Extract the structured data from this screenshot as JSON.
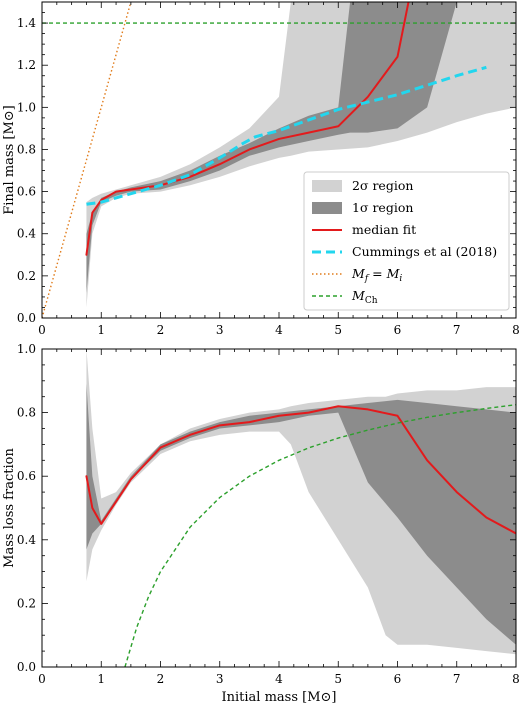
{
  "chart_data": [
    {
      "type": "line",
      "xlabel": "",
      "ylabel": "Final mass [M⊙]",
      "xlim": [
        0,
        8
      ],
      "ylim": [
        0,
        1.5
      ],
      "xticks": [
        "0",
        "1",
        "2",
        "3",
        "4",
        "5",
        "6",
        "7",
        "8"
      ],
      "yticks": [
        "0.0",
        "0.2",
        "0.4",
        "0.6",
        "0.8",
        "1.0",
        "1.2",
        "1.4"
      ],
      "ytick_values": [
        0,
        0.2,
        0.4,
        0.6,
        0.8,
        1.0,
        1.2,
        1.4
      ],
      "legend_position": "lower-right",
      "bands": [
        {
          "name": "2σ region",
          "color": "#d2d2d2",
          "x": [
            0.75,
            0.85,
            1.0,
            1.25,
            1.5,
            2.0,
            2.5,
            3.0,
            3.5,
            4.0,
            4.2,
            4.5,
            5.0,
            5.5,
            6.0,
            6.5,
            7.0,
            7.5,
            8.0
          ],
          "upper": [
            0.55,
            0.57,
            0.59,
            0.61,
            0.63,
            0.67,
            0.73,
            0.81,
            0.9,
            1.05,
            1.5,
            1.5,
            1.5,
            1.5,
            1.5,
            1.5,
            1.5,
            1.5,
            1.5
          ],
          "lower": [
            0.05,
            0.4,
            0.53,
            0.57,
            0.59,
            0.6,
            0.63,
            0.67,
            0.72,
            0.76,
            0.77,
            0.79,
            0.8,
            0.81,
            0.84,
            0.88,
            0.93,
            0.97,
            1.0
          ]
        },
        {
          "name": "1σ region",
          "color": "#8c8c8c",
          "x": [
            0.75,
            0.85,
            1.0,
            1.25,
            1.5,
            2.0,
            2.5,
            3.0,
            3.5,
            4.0,
            4.5,
            5.0,
            5.2,
            5.5,
            6.0,
            6.5,
            7.0,
            7.5,
            8.0
          ],
          "upper": [
            0.4,
            0.5,
            0.57,
            0.6,
            0.62,
            0.65,
            0.7,
            0.77,
            0.83,
            0.9,
            0.96,
            1.0,
            1.5,
            1.5,
            1.5,
            1.5,
            1.5,
            1.5,
            1.5
          ],
          "lower": [
            0.12,
            0.44,
            0.55,
            0.58,
            0.6,
            0.61,
            0.65,
            0.7,
            0.77,
            0.81,
            0.84,
            0.87,
            0.88,
            0.88,
            0.9,
            1.0,
            1.5,
            1.5,
            1.5
          ]
        }
      ],
      "series": [
        {
          "name": "median fit",
          "color": "#e31a1c",
          "width": 2,
          "dash": "",
          "x": [
            0.75,
            0.85,
            1.0,
            1.25,
            1.5,
            2.0,
            2.5,
            3.0,
            3.5,
            4.0,
            4.5,
            5.0,
            5.5,
            6.0,
            6.2
          ],
          "y": [
            0.3,
            0.5,
            0.56,
            0.6,
            0.61,
            0.63,
            0.67,
            0.73,
            0.8,
            0.85,
            0.88,
            0.91,
            1.05,
            1.24,
            1.52
          ]
        },
        {
          "name": "Cummings et al (2018)",
          "color": "#22d6ee",
          "width": 3,
          "dash": "9 5",
          "x": [
            0.75,
            1.0,
            1.5,
            2.0,
            2.5,
            3.0,
            3.4,
            3.6,
            4.0,
            5.0,
            6.0,
            7.0,
            7.5
          ],
          "y": [
            0.54,
            0.55,
            0.59,
            0.63,
            0.68,
            0.76,
            0.83,
            0.86,
            0.89,
            0.99,
            1.06,
            1.15,
            1.19
          ]
        },
        {
          "name": "M_f = M_i",
          "color": "#e07b1a",
          "width": 1.4,
          "dash": "1.5 2.5",
          "x": [
            0,
            1.5
          ],
          "y": [
            0,
            1.5
          ]
        },
        {
          "name": "M_Ch",
          "color": "#2ca02c",
          "width": 1.4,
          "dash": "4 3",
          "x": [
            0,
            8
          ],
          "y": [
            1.4,
            1.4
          ]
        }
      ]
    },
    {
      "type": "line",
      "xlabel": "Initial mass [M⊙]",
      "ylabel": "Mass loss fraction",
      "xlim": [
        0,
        8
      ],
      "ylim": [
        0,
        1.0
      ],
      "xticks": [
        "0",
        "1",
        "2",
        "3",
        "4",
        "5",
        "6",
        "7",
        "8"
      ],
      "yticks": [
        "0.0",
        "0.2",
        "0.4",
        "0.6",
        "0.8",
        "1.0"
      ],
      "ytick_values": [
        0,
        0.2,
        0.4,
        0.6,
        0.8,
        1.0
      ],
      "bands": [
        {
          "name": "2σ region",
          "color": "#d2d2d2",
          "x": [
            0.75,
            0.85,
            1.0,
            1.25,
            1.5,
            2.0,
            2.5,
            3.0,
            3.5,
            4.0,
            4.2,
            4.5,
            5.0,
            5.5,
            5.8,
            6.0,
            6.5,
            7.0,
            7.5,
            8.0
          ],
          "upper": [
            1.0,
            0.75,
            0.53,
            0.55,
            0.61,
            0.7,
            0.75,
            0.78,
            0.8,
            0.81,
            0.82,
            0.83,
            0.84,
            0.85,
            0.85,
            0.86,
            0.87,
            0.87,
            0.88,
            0.88
          ],
          "lower": [
            0.27,
            0.37,
            0.43,
            0.51,
            0.58,
            0.67,
            0.71,
            0.73,
            0.74,
            0.74,
            0.7,
            0.55,
            0.4,
            0.25,
            0.1,
            0.07,
            0.07,
            0.06,
            0.05,
            0.04
          ]
        },
        {
          "name": "1σ region",
          "color": "#8c8c8c",
          "x": [
            0.75,
            0.85,
            1.0,
            1.25,
            1.5,
            2.0,
            2.5,
            3.0,
            3.5,
            4.0,
            4.5,
            5.0,
            5.5,
            6.0,
            6.5,
            7.0,
            7.5,
            8.0
          ],
          "upper": [
            0.89,
            0.6,
            0.46,
            0.53,
            0.6,
            0.7,
            0.74,
            0.77,
            0.79,
            0.8,
            0.81,
            0.82,
            0.83,
            0.84,
            0.83,
            0.82,
            0.81,
            0.8
          ],
          "lower": [
            0.37,
            0.42,
            0.45,
            0.52,
            0.59,
            0.68,
            0.72,
            0.75,
            0.76,
            0.77,
            0.79,
            0.8,
            0.58,
            0.47,
            0.35,
            0.25,
            0.15,
            0.07
          ]
        }
      ],
      "series": [
        {
          "name": "median fit",
          "color": "#e31a1c",
          "width": 2,
          "dash": "",
          "x": [
            0.75,
            0.85,
            1.0,
            1.25,
            1.5,
            2.0,
            2.5,
            3.0,
            3.5,
            4.0,
            4.5,
            5.0,
            5.5,
            6.0,
            6.5,
            7.0,
            7.5,
            8.0
          ],
          "y": [
            0.6,
            0.5,
            0.45,
            0.52,
            0.59,
            0.69,
            0.73,
            0.76,
            0.77,
            0.79,
            0.8,
            0.82,
            0.81,
            0.79,
            0.65,
            0.55,
            0.47,
            0.42
          ]
        },
        {
          "name": "M_Ch",
          "color": "#2ca02c",
          "width": 1.4,
          "dash": "4 3",
          "x": [
            1.4,
            1.6,
            1.8,
            2.0,
            2.5,
            3.0,
            3.5,
            4.0,
            4.5,
            5.0,
            5.5,
            6.0,
            6.5,
            7.0,
            7.5,
            8.0
          ],
          "y": [
            0.0,
            0.125,
            0.222,
            0.3,
            0.44,
            0.533,
            0.6,
            0.65,
            0.689,
            0.72,
            0.745,
            0.767,
            0.785,
            0.8,
            0.813,
            0.825
          ]
        }
      ]
    }
  ],
  "legend": {
    "items": [
      {
        "label": "2σ region",
        "kind": "patch",
        "color": "#d2d2d2"
      },
      {
        "label": "1σ region",
        "kind": "patch",
        "color": "#8c8c8c"
      },
      {
        "label": "median fit",
        "kind": "line",
        "color": "#e31a1c",
        "dash": "",
        "width": 2
      },
      {
        "label": "Cummings et al (2018)",
        "kind": "line",
        "color": "#22d6ee",
        "dash": "9 5",
        "width": 3
      },
      {
        "label": "M_f = M_i",
        "kind": "line",
        "color": "#e07b1a",
        "dash": "1.5 2.5",
        "width": 1.4
      },
      {
        "label": "M_Ch",
        "kind": "line",
        "color": "#2ca02c",
        "dash": "4 3",
        "width": 1.4
      }
    ]
  }
}
